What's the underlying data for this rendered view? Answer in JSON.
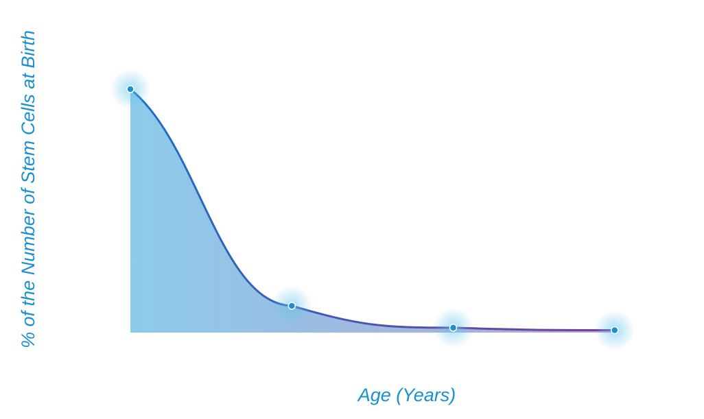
{
  "chart_data": {
    "type": "area",
    "title": "",
    "xlabel": "Age (Years)",
    "ylabel": "% of the Number of Stem Cells at Birth",
    "x": [
      0,
      1,
      2,
      3
    ],
    "values": [
      100,
      11,
      2,
      1
    ],
    "xlim": [
      0,
      3.12
    ],
    "ylim": [
      0,
      100
    ],
    "grid": false,
    "legend": "none",
    "colors": {
      "label": "#1a8fd1",
      "line_start": "#1c6fc4",
      "line_end": "#7a3a9c",
      "fill_start": "#8ccbea",
      "fill_end": "#b4a6d6",
      "point": "#1a8fd1",
      "glow": "#5fc1ee"
    }
  }
}
